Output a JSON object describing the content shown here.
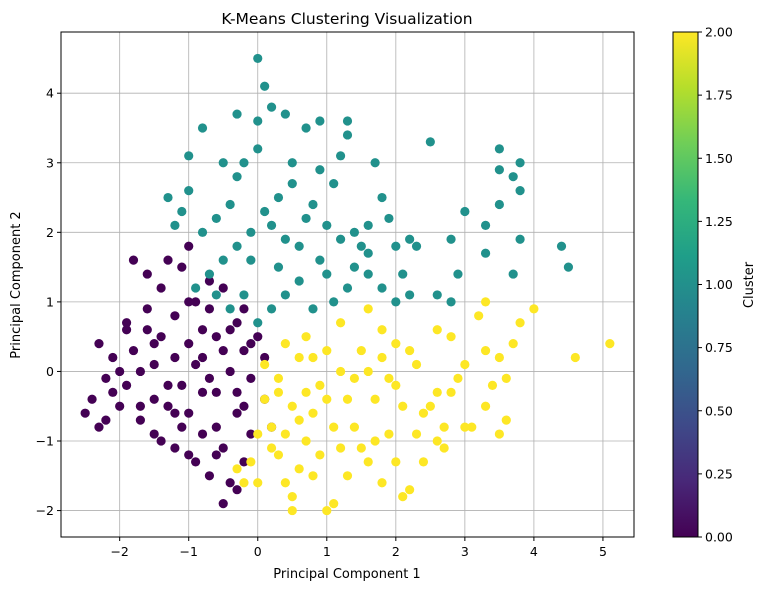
{
  "chart_data": {
    "type": "scatter",
    "title": "K-Means Clustering Visualization",
    "xlabel": "Principal Component 1",
    "ylabel": "Principal Component 2",
    "xlim": [
      -2.85,
      5.45
    ],
    "ylim": [
      -2.38,
      4.88
    ],
    "xticks": [
      -2,
      -1,
      0,
      1,
      2,
      3,
      4,
      5
    ],
    "yticks": [
      -2,
      -1,
      0,
      1,
      2,
      3,
      4
    ],
    "grid": true,
    "marker_size": 8,
    "colormap": "viridis",
    "colorbar": {
      "label": "Cluster",
      "range": [
        0.0,
        2.0
      ],
      "ticks": [
        "0.00",
        "0.25",
        "0.50",
        "0.75",
        "1.00",
        "1.25",
        "1.50",
        "1.75",
        "2.00"
      ],
      "colors": [
        "#440154",
        "#482878",
        "#3e4a89",
        "#31688e",
        "#26828e",
        "#1f9e89",
        "#35b779",
        "#6ece58",
        "#b5de2b",
        "#fde725"
      ]
    },
    "series": [
      {
        "cluster": 0,
        "color": "#440154",
        "points": [
          [
            -2.4,
            -0.4
          ],
          [
            -2.5,
            -0.6
          ],
          [
            -2.3,
            -0.8
          ],
          [
            -2.2,
            -0.1
          ],
          [
            -2.1,
            0.2
          ],
          [
            -2.0,
            -0.5
          ],
          [
            -1.9,
            0.6
          ],
          [
            -1.8,
            0.3
          ],
          [
            -2.1,
            -0.3
          ],
          [
            -1.7,
            -0.7
          ],
          [
            -1.6,
            0.9
          ],
          [
            -1.5,
            0.1
          ],
          [
            -1.5,
            -0.9
          ],
          [
            -1.4,
            1.2
          ],
          [
            -1.3,
            -0.2
          ],
          [
            -1.2,
            0.8
          ],
          [
            -1.2,
            -1.1
          ],
          [
            -1.1,
            1.5
          ],
          [
            -1.0,
            0.4
          ],
          [
            -1.0,
            -0.6
          ],
          [
            -0.9,
            1.0
          ],
          [
            -0.9,
            -1.3
          ],
          [
            -0.8,
            0.2
          ],
          [
            -0.8,
            -0.9
          ],
          [
            -0.7,
            0.9
          ],
          [
            -0.7,
            -1.5
          ],
          [
            -0.6,
            0.5
          ],
          [
            -0.6,
            -0.3
          ],
          [
            -0.5,
            1.2
          ],
          [
            -0.5,
            -1.1
          ],
          [
            -0.4,
            0.0
          ],
          [
            -0.4,
            -1.6
          ],
          [
            -0.3,
            0.7
          ],
          [
            -0.3,
            -0.6
          ],
          [
            -0.2,
            0.3
          ],
          [
            -0.2,
            -1.3
          ],
          [
            -0.1,
            -0.1
          ],
          [
            -0.1,
            -0.9
          ],
          [
            0.0,
            0.5
          ],
          [
            0.1,
            -0.4
          ],
          [
            0.1,
            0.2
          ],
          [
            0.2,
            -0.8
          ],
          [
            -1.8,
            1.6
          ],
          [
            -1.6,
            1.4
          ],
          [
            -1.3,
            1.6
          ],
          [
            -1.0,
            1.8
          ],
          [
            -0.7,
            1.3
          ],
          [
            -2.3,
            0.4
          ],
          [
            -2.2,
            -0.7
          ],
          [
            -1.9,
            -0.2
          ],
          [
            -1.7,
            0.0
          ],
          [
            -1.4,
            0.5
          ],
          [
            -1.3,
            -0.5
          ],
          [
            -1.1,
            -0.8
          ],
          [
            -0.9,
            0.1
          ],
          [
            -0.6,
            -0.8
          ],
          [
            -0.5,
            0.3
          ],
          [
            -0.3,
            -0.3
          ],
          [
            -0.1,
            0.4
          ],
          [
            -1.5,
            -0.4
          ],
          [
            -1.2,
            0.2
          ],
          [
            -0.8,
            -0.3
          ],
          [
            -0.4,
            0.6
          ],
          [
            -2.0,
            0.0
          ],
          [
            -1.6,
            0.6
          ],
          [
            -1.1,
            -0.2
          ],
          [
            -0.7,
            -0.1
          ],
          [
            -0.2,
            -0.5
          ],
          [
            -1.4,
            -1.0
          ],
          [
            -1.0,
            -1.2
          ],
          [
            -0.5,
            -1.9
          ],
          [
            -0.3,
            -1.7
          ],
          [
            -1.9,
            0.7
          ],
          [
            -1.5,
            0.4
          ],
          [
            -1.2,
            -0.6
          ],
          [
            -0.8,
            0.6
          ],
          [
            -0.6,
            -1.2
          ],
          [
            -0.2,
            0.9
          ],
          [
            -1.7,
            -0.5
          ],
          [
            -1.0,
            1.0
          ]
        ]
      },
      {
        "cluster": 1,
        "color": "#21918c",
        "points": [
          [
            0.0,
            4.5
          ],
          [
            0.1,
            4.1
          ],
          [
            0.0,
            3.6
          ],
          [
            0.2,
            3.8
          ],
          [
            0.4,
            3.7
          ],
          [
            0.7,
            3.5
          ],
          [
            0.9,
            3.6
          ],
          [
            1.3,
            3.6
          ],
          [
            1.3,
            3.4
          ],
          [
            -0.3,
            3.7
          ],
          [
            -1.0,
            3.1
          ],
          [
            -0.8,
            3.5
          ],
          [
            2.5,
            3.3
          ],
          [
            3.5,
            3.2
          ],
          [
            3.5,
            2.9
          ],
          [
            3.7,
            2.8
          ],
          [
            3.8,
            3.0
          ],
          [
            3.8,
            2.6
          ],
          [
            3.5,
            2.4
          ],
          [
            3.0,
            2.3
          ],
          [
            3.3,
            2.1
          ],
          [
            2.8,
            1.9
          ],
          [
            3.8,
            1.9
          ],
          [
            4.4,
            1.8
          ],
          [
            4.5,
            1.5
          ],
          [
            3.7,
            1.4
          ],
          [
            3.3,
            1.7
          ],
          [
            2.2,
            1.9
          ],
          [
            2.3,
            1.8
          ],
          [
            2.0,
            1.8
          ],
          [
            1.8,
            2.5
          ],
          [
            1.6,
            2.1
          ],
          [
            1.5,
            1.8
          ],
          [
            1.4,
            1.5
          ],
          [
            1.2,
            1.9
          ],
          [
            1.0,
            2.1
          ],
          [
            0.8,
            2.4
          ],
          [
            0.5,
            2.7
          ],
          [
            0.3,
            2.5
          ],
          [
            0.1,
            2.3
          ],
          [
            -0.1,
            2.0
          ],
          [
            -0.3,
            1.8
          ],
          [
            -0.5,
            1.6
          ],
          [
            -0.7,
            1.4
          ],
          [
            -0.9,
            1.2
          ],
          [
            -1.1,
            2.3
          ],
          [
            -1.3,
            2.5
          ],
          [
            -1.0,
            2.6
          ],
          [
            -0.6,
            2.2
          ],
          [
            -0.3,
            2.8
          ],
          [
            0.0,
            3.2
          ],
          [
            -0.2,
            3.0
          ],
          [
            -0.5,
            3.0
          ],
          [
            0.5,
            3.0
          ],
          [
            0.9,
            2.9
          ],
          [
            1.1,
            2.7
          ],
          [
            1.2,
            3.1
          ],
          [
            1.7,
            3.0
          ],
          [
            2.9,
            1.4
          ],
          [
            2.8,
            1.0
          ],
          [
            2.6,
            1.1
          ],
          [
            2.2,
            1.1
          ],
          [
            2.0,
            1.0
          ],
          [
            1.6,
            1.4
          ],
          [
            1.3,
            1.2
          ],
          [
            1.1,
            1.0
          ],
          [
            0.8,
            0.9
          ],
          [
            0.6,
            1.3
          ],
          [
            0.4,
            1.1
          ],
          [
            0.2,
            0.9
          ],
          [
            0.0,
            0.7
          ],
          [
            -0.2,
            1.1
          ],
          [
            -0.4,
            0.9
          ],
          [
            0.3,
            1.5
          ],
          [
            0.6,
            1.8
          ],
          [
            0.9,
            1.6
          ],
          [
            0.7,
            2.2
          ],
          [
            0.4,
            1.9
          ],
          [
            -0.8,
            2.0
          ],
          [
            -1.2,
            2.1
          ],
          [
            -0.4,
            2.4
          ],
          [
            1.6,
            1.7
          ],
          [
            1.8,
            1.2
          ],
          [
            2.1,
            1.4
          ],
          [
            1.0,
            1.4
          ],
          [
            0.2,
            2.1
          ],
          [
            -0.1,
            1.6
          ],
          [
            1.4,
            2.0
          ],
          [
            1.9,
            2.2
          ],
          [
            -0.6,
            1.1
          ]
        ]
      },
      {
        "cluster": 2,
        "color": "#fde725",
        "points": [
          [
            5.1,
            0.4
          ],
          [
            4.6,
            0.2
          ],
          [
            4.0,
            0.9
          ],
          [
            3.8,
            0.7
          ],
          [
            3.7,
            0.4
          ],
          [
            3.6,
            -0.1
          ],
          [
            3.5,
            -0.9
          ],
          [
            3.6,
            -0.7
          ],
          [
            3.3,
            -0.5
          ],
          [
            3.1,
            -0.8
          ],
          [
            3.0,
            -0.8
          ],
          [
            3.3,
            0.3
          ],
          [
            3.2,
            0.8
          ],
          [
            3.3,
            1.0
          ],
          [
            3.5,
            0.2
          ],
          [
            2.8,
            0.5
          ],
          [
            2.6,
            0.6
          ],
          [
            2.9,
            -0.1
          ],
          [
            2.6,
            -0.3
          ],
          [
            2.7,
            -1.1
          ],
          [
            2.6,
            -1.0
          ],
          [
            2.3,
            -0.9
          ],
          [
            2.3,
            0.1
          ],
          [
            2.1,
            -0.5
          ],
          [
            2.0,
            0.4
          ],
          [
            1.9,
            -0.1
          ],
          [
            2.0,
            -1.3
          ],
          [
            2.1,
            -1.8
          ],
          [
            2.2,
            -1.7
          ],
          [
            1.8,
            -1.6
          ],
          [
            1.6,
            -1.3
          ],
          [
            1.5,
            -1.1
          ],
          [
            1.4,
            -0.8
          ],
          [
            1.3,
            -0.4
          ],
          [
            1.2,
            0.0
          ],
          [
            1.2,
            0.7
          ],
          [
            1.6,
            0.9
          ],
          [
            1.8,
            0.6
          ],
          [
            1.0,
            0.3
          ],
          [
            0.9,
            -0.2
          ],
          [
            0.8,
            -0.6
          ],
          [
            0.7,
            -1.0
          ],
          [
            0.6,
            -1.4
          ],
          [
            0.5,
            -1.8
          ],
          [
            0.4,
            -1.6
          ],
          [
            0.3,
            -1.2
          ],
          [
            0.2,
            -0.8
          ],
          [
            0.1,
            -0.4
          ],
          [
            0.0,
            -0.9
          ],
          [
            0.0,
            -1.6
          ],
          [
            -0.1,
            -1.3
          ],
          [
            0.5,
            -2.0
          ],
          [
            1.0,
            -2.0
          ],
          [
            1.1,
            -1.9
          ],
          [
            0.8,
            -1.5
          ],
          [
            0.3,
            -0.3
          ],
          [
            0.6,
            0.2
          ],
          [
            0.4,
            0.4
          ],
          [
            0.8,
            0.2
          ],
          [
            1.4,
            -0.1
          ],
          [
            1.7,
            -0.4
          ],
          [
            2.4,
            -0.6
          ],
          [
            2.8,
            -0.3
          ],
          [
            2.5,
            -0.5
          ],
          [
            1.9,
            -0.9
          ],
          [
            1.1,
            -0.8
          ],
          [
            0.5,
            -0.5
          ],
          [
            -0.2,
            -1.6
          ],
          [
            0.2,
            -1.1
          ],
          [
            0.7,
            -0.3
          ],
          [
            1.5,
            0.3
          ],
          [
            2.2,
            0.3
          ],
          [
            3.0,
            0.1
          ],
          [
            1.3,
            -1.5
          ],
          [
            0.9,
            -1.2
          ],
          [
            0.4,
            -0.9
          ],
          [
            1.7,
            -1.0
          ],
          [
            2.4,
            -1.3
          ],
          [
            1.0,
            -0.4
          ],
          [
            0.3,
            -0.1
          ],
          [
            -0.3,
            -1.4
          ],
          [
            2.7,
            -0.8
          ],
          [
            1.6,
            0.0
          ],
          [
            0.6,
            -0.7
          ],
          [
            1.2,
            -1.1
          ],
          [
            0.1,
            0.1
          ],
          [
            1.8,
            0.2
          ],
          [
            2.0,
            -0.2
          ],
          [
            0.7,
            0.5
          ],
          [
            3.4,
            -0.2
          ]
        ]
      }
    ]
  }
}
